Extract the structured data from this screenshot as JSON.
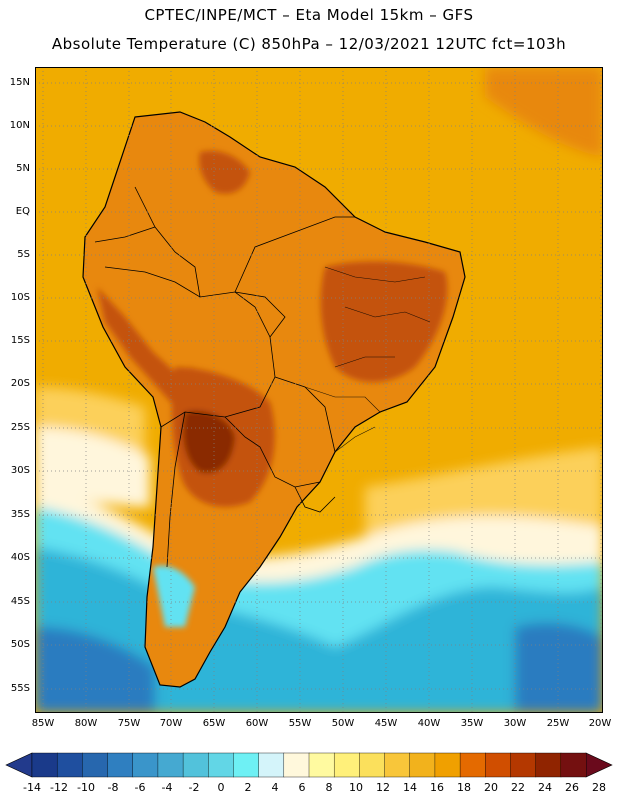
{
  "header": {
    "line1": "CPTEC/INPE/MCT –  Eta Model 15km – GFS",
    "line2": "Absolute Temperature (C) 850hPa – 12/03/2021 12UTC fct=103h"
  },
  "map": {
    "lat_ticks": [
      "15N",
      "10N",
      "5N",
      "EQ",
      "5S",
      "10S",
      "15S",
      "20S",
      "25S",
      "30S",
      "35S",
      "40S",
      "45S",
      "50S",
      "55S"
    ],
    "lon_ticks": [
      "85W",
      "80W",
      "75W",
      "70W",
      "65W",
      "60W",
      "55W",
      "50W",
      "45W",
      "40W",
      "35W",
      "30W",
      "25W",
      "20W"
    ],
    "colors": {
      "ocean_tropical": "#f0ac00",
      "ocean_subtropical": "#fcd05a",
      "land_warm": "#e8880e",
      "land_hot": "#c45208",
      "land_hottest": "#8a2c06",
      "south_cool": "#fff6dc",
      "south_cold": "#62e2f2",
      "south_colder": "#2fb4d8",
      "south_coldest": "#2a7cc0",
      "grid": "#808080"
    }
  },
  "colorbar": {
    "labels": [
      "-14",
      "-12",
      "-10",
      "-8",
      "-6",
      "-4",
      "-2",
      "0",
      "2",
      "4",
      "6",
      "8",
      "10",
      "12",
      "14",
      "16",
      "18",
      "20",
      "22",
      "24",
      "26",
      "28"
    ],
    "colors": [
      "#1a3a8a",
      "#1f4f9f",
      "#2767ae",
      "#2f7fc0",
      "#3a95ca",
      "#45a9d1",
      "#52c2db",
      "#62d6e6",
      "#6ef0f4",
      "#d4f4fa",
      "#fff8dc",
      "#fffaa0",
      "#fff07a",
      "#fbe05c",
      "#f8c63a",
      "#f2b21c",
      "#f0a000",
      "#e46a00",
      "#d04e00",
      "#b43800",
      "#902400",
      "#741010"
    ],
    "min_color": "#223a8c",
    "max_color": "#6a0a1c"
  }
}
